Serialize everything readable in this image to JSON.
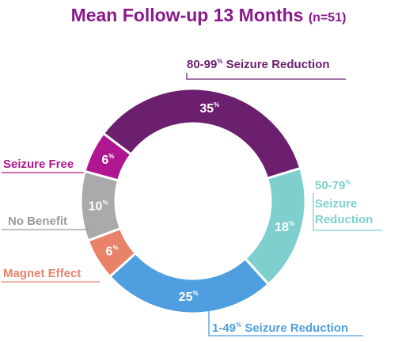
{
  "chart_data": {
    "type": "pie",
    "title": "Mean Follow-up 13 Months",
    "subtitle": "(n=51)",
    "slices": [
      {
        "name": "80-99% Seizure Reduction",
        "value_text": "35",
        "value": 35,
        "color": "#6b1f6e"
      },
      {
        "name": "50-79% Seizure Reduction",
        "value_text": "18",
        "value": 18,
        "color": "#7fcfcf"
      },
      {
        "name": "1-49% Seizure Reduction",
        "value_text": "25",
        "value": 25,
        "color": "#4f9fe0"
      },
      {
        "name": "Magnet Effect",
        "value_text": "6",
        "value": 6,
        "color": "#e8836a"
      },
      {
        "name": "No Benefit",
        "value_text": "10",
        "value": 10,
        "color": "#a9aaac"
      },
      {
        "name": "Seizure Free",
        "value_text": "6",
        "value": 6,
        "color": "#b0168f"
      }
    ],
    "pct_symbol": "%",
    "labels": {
      "s80_range": "80-99",
      "s80_text": "Seizure Reduction",
      "s50_range": "50-79",
      "s50_line2": "Seizure",
      "s50_line3": "Reduction",
      "s1_range": "1-49",
      "s1_text": "Seizure Reduction",
      "magnet": "Magnet Effect",
      "nobenefit": "No Benefit",
      "seizurefree": "Seizure Free"
    },
    "label_colors": {
      "s80": "#6b1f6e",
      "s50": "#7fcfcf",
      "s1": "#4f9fe0",
      "magnet": "#e8836a",
      "nobenefit": "#9a9b9d",
      "seizurefree": "#b0168f"
    }
  }
}
